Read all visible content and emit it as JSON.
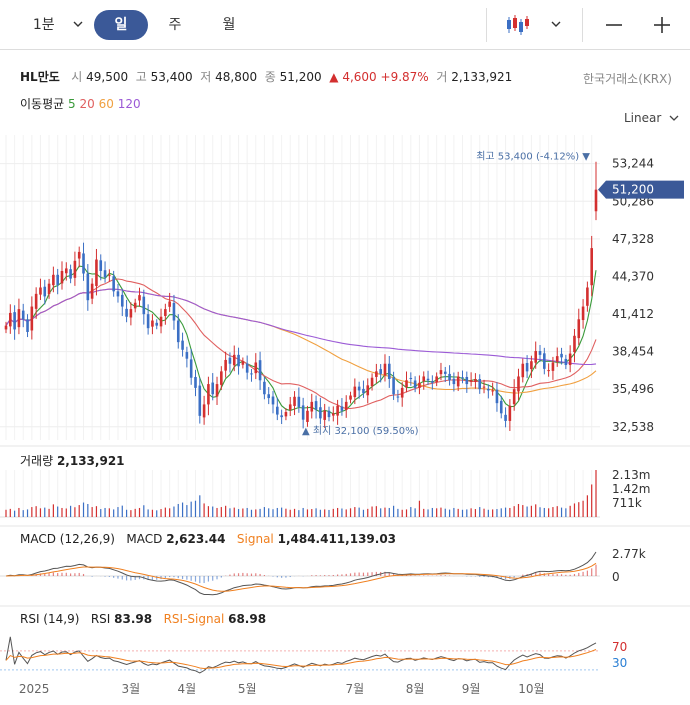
{
  "toolbar": {
    "interval": "1분",
    "tabs": [
      "일",
      "주",
      "월"
    ],
    "active_tab": 0,
    "chart_type_icon": "candlestick-icon",
    "dropdown_icon": "chevron-down-icon",
    "zoom_out_icon": "minus-icon",
    "zoom_in_icon": "plus-icon"
  },
  "stock": {
    "name": "HL만도",
    "open_label": "시",
    "open": "49,500",
    "high_label": "고",
    "high": "53,400",
    "low_label": "저",
    "low": "48,800",
    "close_label": "종",
    "close": "51,200",
    "change": "▲ 4,600",
    "change_pct": "+9.87%",
    "volume_label": "거",
    "volume": "2,133,921",
    "exchange": "한국거래소(KRX)"
  },
  "ma": {
    "label": "이동평균",
    "periods": [
      "5",
      "20",
      "60",
      "120"
    ],
    "colors": [
      "#3a9a3a",
      "#e06060",
      "#f0a040",
      "#9b5ad6"
    ]
  },
  "scale": "Linear",
  "chart_data": [
    {
      "type": "candlestick",
      "yticks": [
        "53,244",
        "50,286",
        "47,328",
        "44,370",
        "41,412",
        "38,454",
        "35,496",
        "32,538"
      ],
      "ytick_values": [
        53244,
        50286,
        47328,
        44370,
        41412,
        38454,
        35496,
        32538
      ],
      "ylim": [
        31500,
        55500
      ],
      "current_price": "51,200",
      "current_value": 51200,
      "high_marker": "최고 53,400 (-4.12%) ▼",
      "low_marker": "▲ 최지 32,100 (59.50%)",
      "xticks": [
        "2025",
        "3월",
        "4월",
        "5월",
        "7월",
        "8월",
        "9월",
        "10월"
      ],
      "xtick_index": [
        3,
        29,
        42,
        56,
        81,
        95,
        108,
        122
      ],
      "colors": {
        "up": "#d32f2f",
        "down": "#3b6fc4"
      },
      "close": [
        40500,
        41500,
        40200,
        41800,
        41000,
        40000,
        42000,
        43000,
        43500,
        42800,
        43800,
        44500,
        43700,
        44800,
        45000,
        44200,
        45600,
        46300,
        44600,
        42500,
        43800,
        45700,
        44800,
        44300,
        44500,
        43200,
        42800,
        42000,
        41200,
        41800,
        42300,
        42900,
        41400,
        40300,
        40900,
        40500,
        41200,
        41800,
        42400,
        40900,
        39200,
        38600,
        37900,
        36400,
        35600,
        33400,
        34300,
        35900,
        35100,
        35900,
        36900,
        37800,
        37500,
        38200,
        37300,
        37700,
        36800,
        36700,
        37600,
        36200,
        35100,
        34800,
        34300,
        33500,
        33300,
        33700,
        34300,
        34900,
        34100,
        33100,
        33800,
        34500,
        33900,
        33200,
        33800,
        33300,
        33600,
        34200,
        33800,
        34500,
        35000,
        35700,
        35400,
        35200,
        35800,
        36400,
        36900,
        36700,
        37500,
        36300,
        35100,
        34900,
        35600,
        36200,
        36300,
        35600,
        36000,
        36500,
        36200,
        36000,
        36500,
        37000,
        36700,
        36200,
        35900,
        36500,
        36400,
        35900,
        36200,
        36300,
        35500,
        35700,
        35400,
        35400,
        34400,
        33600,
        33000,
        34200,
        35500,
        36500,
        37500,
        36900,
        37700,
        38500,
        38200,
        37100,
        37000,
        37600,
        38100,
        38000,
        37400,
        38300,
        39700,
        41000,
        42000,
        43500,
        46600,
        51200
      ],
      "volume": [
        40,
        45,
        35,
        50,
        38,
        42,
        55,
        60,
        48,
        52,
        45,
        70,
        58,
        50,
        47,
        62,
        54,
        66,
        80,
        72,
        55,
        60,
        44,
        50,
        48,
        42,
        55,
        63,
        40,
        38,
        45,
        50,
        65,
        42,
        40,
        37,
        44,
        52,
        48,
        58,
        72,
        80,
        66,
        85,
        90,
        120,
        75,
        60,
        58,
        50,
        55,
        62,
        48,
        52,
        44,
        47,
        50,
        40,
        42,
        45,
        55,
        48,
        43,
        50,
        52,
        46,
        40,
        45,
        38,
        50,
        42,
        44,
        48,
        40,
        42,
        39,
        45,
        50,
        47,
        42,
        48,
        55,
        52,
        40,
        45,
        58,
        60,
        48,
        52,
        50,
        62,
        45,
        40,
        42,
        55,
        48,
        90,
        45,
        42,
        50,
        48,
        52,
        46,
        41,
        50,
        45,
        40,
        42,
        48,
        44,
        55,
        46,
        40,
        42,
        44,
        48,
        52,
        50,
        60,
        72,
        66,
        58,
        62,
        70,
        54,
        50,
        48,
        55,
        60,
        52,
        48,
        62,
        75,
        82,
        90,
        120,
        180,
        260
      ],
      "volume_yticks": [
        "2.13m",
        "1.42m",
        "711k"
      ],
      "macd_title": "MACD (12,26,9)",
      "macd_label": "MACD",
      "macd_value": "2,623.44",
      "signal_label": "Signal",
      "signal_value": "1,484.411,139.03",
      "macd_yticks": [
        "2.77k",
        "0"
      ],
      "rsi_title": "RSI (14,9)",
      "rsi_label": "RSI",
      "rsi_value": "83.98",
      "rsi_signal_label": "RSI-Signal",
      "rsi_signal_value": "68.98",
      "rsi_levels": [
        "70",
        "30"
      ]
    }
  ]
}
